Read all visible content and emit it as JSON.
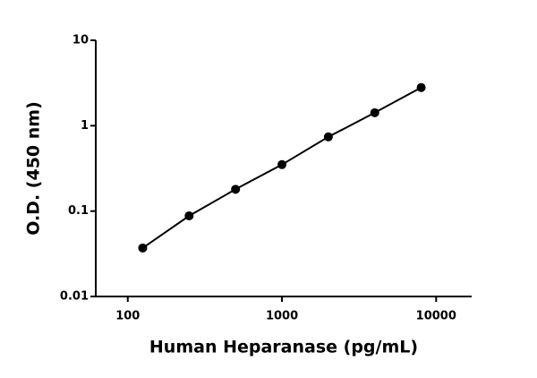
{
  "chart_data": {
    "type": "scatter",
    "x_label": "Human Heparanase (pg/mL)",
    "y_label": "O.D. (450 nm)",
    "x": [
      125,
      250,
      500,
      1000,
      2000,
      4000,
      8000
    ],
    "series": [
      {
        "color": "#000000",
        "values": [
          0.037,
          0.088,
          0.18,
          0.35,
          0.74,
          1.42,
          2.8
        ]
      }
    ],
    "xlim": [
      62,
      17000
    ],
    "ylim": [
      0.01,
      10
    ],
    "xticks": [
      100,
      1000,
      10000
    ],
    "yticks": [
      0.01,
      0.1,
      1,
      10
    ],
    "xscale": "log",
    "yscale": "log",
    "connect_points": true
  }
}
